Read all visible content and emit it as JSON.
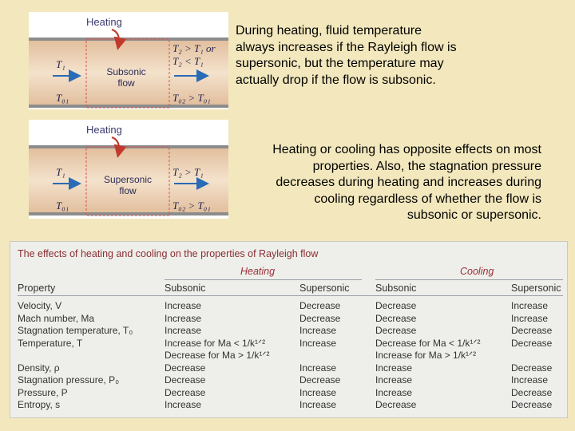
{
  "figures": [
    {
      "heating_label": "Heating",
      "inlet_temp": "T₁",
      "flow_label_1": "Subsonic",
      "flow_label_2": "flow",
      "inlet_total_temp": "T₀₁",
      "outlet_temp_line1": "T₂ > T₁ or",
      "outlet_temp_line2": "T₂ < T₁",
      "outlet_total_temp": "T₀₂ > T₀₁"
    },
    {
      "heating_label": "Heating",
      "inlet_temp": "T₁",
      "flow_label_1": "Supersonic",
      "flow_label_2": "flow",
      "inlet_total_temp": "T₀₁",
      "outlet_temp_line1": "T₂ > T₁",
      "outlet_total_temp": "T₀₂ > T₀₁"
    }
  ],
  "paragraph_1": "During heating, fluid temperature always increases if the Rayleigh flow is supersonic, but the temperature may actually drop if the flow is subsonic.",
  "paragraph_2": "Heating or cooling has opposite effects on most properties. Also, the stagnation pressure decreases during heating and increases during cooling regardless of whether the flow is subsonic or supersonic.",
  "table": {
    "caption": "The effects of heating and cooling on the properties of Rayleigh flow",
    "group_heating": "Heating",
    "group_cooling": "Cooling",
    "headers": [
      "Property",
      "Subsonic",
      "Supersonic",
      "Subsonic",
      "Supersonic"
    ],
    "rows": [
      {
        "property": "Velocity, V",
        "h_sub": "Increase",
        "h_sup": "Decrease",
        "c_sub": "Decrease",
        "c_sup": "Increase"
      },
      {
        "property": "Mach number, Ma",
        "h_sub": "Increase",
        "h_sup": "Decrease",
        "c_sub": "Decrease",
        "c_sup": "Increase"
      },
      {
        "property": "Stagnation temperature, T₀",
        "h_sub": "Increase",
        "h_sup": "Increase",
        "c_sub": "Decrease",
        "c_sup": "Decrease"
      },
      {
        "property": "Temperature, T",
        "h_sub": "Increase for Ma < 1/k¹ᐟ²",
        "h_sup": "Increase",
        "c_sub": "Decrease for Ma < 1/k¹ᐟ²",
        "c_sup": "Decrease"
      },
      {
        "property": "",
        "h_sub": "Decrease for Ma > 1/k¹ᐟ²",
        "h_sup": "",
        "c_sub": "Increase for Ma > 1/k¹ᐟ²",
        "c_sup": ""
      },
      {
        "property": "Density, ρ",
        "h_sub": "Decrease",
        "h_sup": "Increase",
        "c_sub": "Increase",
        "c_sup": "Decrease"
      },
      {
        "property": "Stagnation pressure, P₀",
        "h_sub": "Decrease",
        "h_sup": "Decrease",
        "c_sub": "Increase",
        "c_sup": "Increase"
      },
      {
        "property": "Pressure, P",
        "h_sub": "Decrease",
        "h_sup": "Increase",
        "c_sub": "Increase",
        "c_sup": "Decrease"
      },
      {
        "property": "Entropy, s",
        "h_sub": "Increase",
        "h_sup": "Increase",
        "c_sub": "Decrease",
        "c_sup": "Decrease"
      }
    ]
  }
}
